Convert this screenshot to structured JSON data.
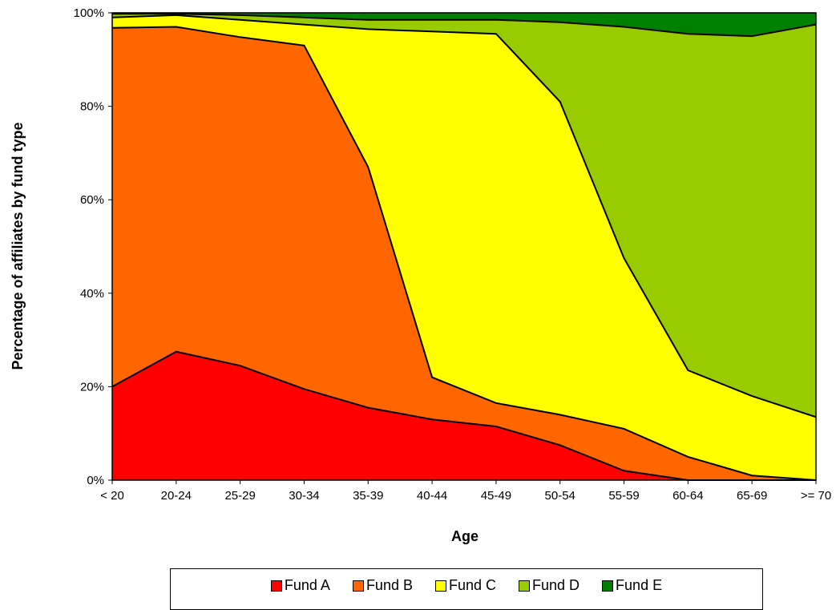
{
  "chart_data": {
    "type": "area",
    "stacked": true,
    "percent": true,
    "xlabel": "Age",
    "ylabel": "Percentage of affiliates by fund type",
    "categories": [
      "< 20",
      "20-24",
      "25-29",
      "30-34",
      "35-39",
      "40-44",
      "45-49",
      "50-54",
      "55-59",
      "60-64",
      "65-69",
      ">= 70"
    ],
    "y_ticks": [
      "0%",
      "20%",
      "40%",
      "60%",
      "80%",
      "100%"
    ],
    "ylim": [
      0,
      100
    ],
    "legend_position": "bottom",
    "series": [
      {
        "name": "Fund A",
        "color": "#ff0000",
        "values": [
          20,
          27.5,
          24.5,
          19.5,
          15.5,
          13,
          11.5,
          7.5,
          2,
          0,
          0,
          0
        ]
      },
      {
        "name": "Fund B",
        "color": "#ff6600",
        "values": [
          76.8,
          69.5,
          70.3,
          73.5,
          51.5,
          9,
          5,
          6.5,
          9,
          5,
          1,
          0
        ]
      },
      {
        "name": "Fund C",
        "color": "#ffff00",
        "values": [
          2.2,
          2.5,
          3.7,
          4.5,
          29.5,
          74,
          79,
          67,
          36.5,
          18.5,
          17,
          13.5
        ]
      },
      {
        "name": "Fund D",
        "color": "#99cc00",
        "values": [
          0.8,
          0.3,
          1,
          1.5,
          2,
          2.5,
          3,
          17,
          49.5,
          72,
          77,
          84
        ]
      },
      {
        "name": "Fund E",
        "color": "#008000",
        "values": [
          0.2,
          0.2,
          0.5,
          1,
          1.5,
          1.5,
          1.5,
          2,
          3,
          4.5,
          5,
          2.5
        ]
      }
    ]
  }
}
